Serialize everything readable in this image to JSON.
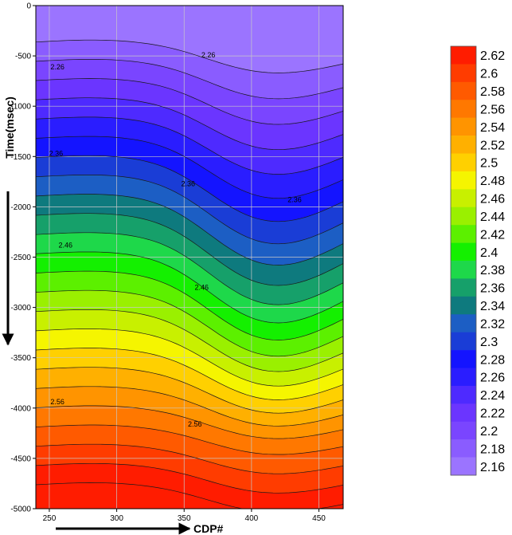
{
  "chart_data": {
    "type": "heatmap",
    "subtype": "filled-contour",
    "xlabel": "CDP#",
    "ylabel": "Time(msec)",
    "xlim": [
      240,
      468
    ],
    "ylim": [
      -5000,
      0
    ],
    "xticks": [
      250,
      300,
      350,
      400,
      450
    ],
    "yticks": [
      0,
      -500,
      -1000,
      -1500,
      -2000,
      -2500,
      -3000,
      -3500,
      -4000,
      -4500,
      -5000
    ],
    "grid": true,
    "legend": "right",
    "colorbar": {
      "levels": [
        "2.16",
        "2.18",
        "2.2",
        "2.22",
        "2.24",
        "2.26",
        "2.28",
        "2.3",
        "2.32",
        "2.34",
        "2.36",
        "2.38",
        "2.4",
        "2.42",
        "2.44",
        "2.46",
        "2.48",
        "2.5",
        "2.52",
        "2.54",
        "2.56",
        "2.58",
        "2.6",
        "2.62"
      ],
      "colors": [
        "#9b74ff",
        "#8a5cff",
        "#7a45ff",
        "#6b35ff",
        "#4e2aff",
        "#2a1dff",
        "#1414ff",
        "#1a3dd6",
        "#1c5ec4",
        "#0e7a7e",
        "#16a06a",
        "#1ed84a",
        "#14f000",
        "#5cf000",
        "#9af000",
        "#c8f000",
        "#f5f500",
        "#ffd000",
        "#ffb000",
        "#ff9400",
        "#ff7800",
        "#ff5a00",
        "#ff3c00",
        "#ff1c00"
      ]
    },
    "contour_labels": [
      {
        "text": "2.26",
        "x": 256,
        "y": -610
      },
      {
        "text": "2.26",
        "x": 368,
        "y": -490
      },
      {
        "text": "2.36",
        "x": 255,
        "y": -1470
      },
      {
        "text": "2.36",
        "x": 353,
        "y": -1770
      },
      {
        "text": "2.36",
        "x": 432,
        "y": -1930
      },
      {
        "text": "2.46",
        "x": 262,
        "y": -2380
      },
      {
        "text": "2.46",
        "x": 363,
        "y": -2800
      },
      {
        "text": "2.56",
        "x": 256,
        "y": -3940
      },
      {
        "text": "2.56",
        "x": 358,
        "y": -4160
      }
    ]
  }
}
